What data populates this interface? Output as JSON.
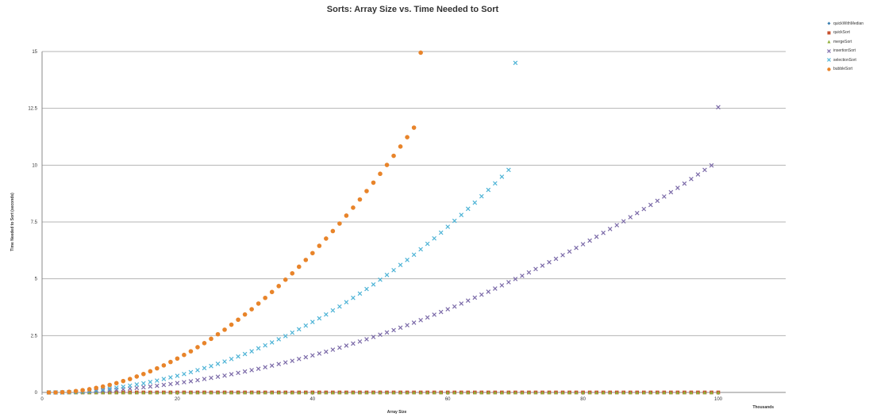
{
  "chart_data": {
    "type": "scatter",
    "title": "Sorts: Array Size vs. Time Needed to Sort",
    "xlabel": "Array Size",
    "ylabel": "Time Needed to Sort (seconds)",
    "x_unit_label": "Thousands",
    "xlim": [
      0,
      100
    ],
    "ylim": [
      0,
      15
    ],
    "x_ticks": [
      "0",
      "20",
      "40",
      "60",
      "80",
      "100"
    ],
    "y_ticks": [
      "0",
      "2.5",
      "5",
      "7.5",
      "10",
      "12.5",
      "15"
    ],
    "grid": "horizontal",
    "legend_position": "right",
    "series": [
      {
        "name": "quickWithMedian",
        "marker": "diamond",
        "color": "#3a7fb0",
        "x": [
          1,
          2,
          3,
          4,
          5,
          6,
          7,
          8,
          9,
          10,
          11,
          12,
          13,
          14,
          15,
          16,
          17,
          18,
          19,
          20,
          21,
          22,
          23,
          24,
          25,
          26,
          27,
          28,
          29,
          30,
          31,
          32,
          33,
          34,
          35,
          36,
          37,
          38,
          39,
          40,
          41,
          42,
          43,
          44,
          45,
          46,
          47,
          48,
          49,
          50,
          51,
          52,
          53,
          54,
          55,
          56,
          57,
          58,
          59,
          60,
          61,
          62,
          63,
          64,
          65,
          66,
          67,
          68,
          69,
          70,
          71,
          72,
          73,
          74,
          75,
          76,
          77,
          78,
          79,
          80,
          81,
          82,
          83,
          84,
          85,
          86,
          87,
          88,
          89,
          90,
          91,
          92,
          93,
          94,
          95,
          96,
          97,
          98,
          99,
          100
        ],
        "y": [
          0,
          0,
          0,
          0,
          0,
          0,
          0,
          0,
          0,
          0,
          0,
          0,
          0,
          0,
          0,
          0,
          0,
          0,
          0,
          0,
          0,
          0,
          0,
          0,
          0,
          0,
          0,
          0,
          0,
          0,
          0,
          0,
          0,
          0,
          0,
          0,
          0,
          0,
          0,
          0,
          0,
          0,
          0,
          0,
          0,
          0,
          0,
          0,
          0,
          0,
          0,
          0,
          0,
          0,
          0,
          0,
          0,
          0,
          0,
          0,
          0,
          0,
          0,
          0,
          0,
          0,
          0,
          0,
          0,
          0,
          0,
          0,
          0,
          0,
          0,
          0,
          0,
          0,
          0,
          0,
          0,
          0,
          0,
          0,
          0,
          0,
          0,
          0,
          0,
          0,
          0,
          0,
          0,
          0,
          0,
          0,
          0,
          0,
          0,
          0
        ]
      },
      {
        "name": "quickSort",
        "marker": "square",
        "color": "#c7502e",
        "x": [
          1,
          2,
          3,
          4,
          5,
          6,
          7,
          8,
          9,
          10,
          11,
          12,
          13,
          14,
          15,
          16,
          17,
          18,
          19,
          20,
          21,
          22,
          23,
          24,
          25,
          26,
          27,
          28,
          29,
          30,
          31,
          32,
          33,
          34,
          35,
          36,
          37,
          38,
          39,
          40,
          41,
          42,
          43,
          44,
          45,
          46,
          47,
          48,
          49,
          50,
          51,
          52,
          53,
          54,
          55,
          56,
          57,
          58,
          59,
          60,
          61,
          62,
          63,
          64,
          65,
          66,
          67,
          68,
          69,
          70,
          71,
          72,
          73,
          74,
          75,
          76,
          77,
          78,
          79,
          80,
          81,
          82,
          83,
          84,
          85,
          86,
          87,
          88,
          89,
          90,
          91,
          92,
          93,
          94,
          95,
          96,
          97,
          98,
          99,
          100
        ],
        "y": [
          0,
          0,
          0,
          0,
          0,
          0,
          0,
          0,
          0,
          0,
          0,
          0,
          0,
          0,
          0,
          0,
          0,
          0,
          0,
          0,
          0,
          0,
          0,
          0,
          0,
          0,
          0,
          0,
          0,
          0,
          0,
          0,
          0,
          0,
          0,
          0,
          0,
          0,
          0,
          0,
          0,
          0,
          0,
          0,
          0,
          0,
          0,
          0,
          0,
          0,
          0,
          0,
          0,
          0,
          0,
          0,
          0,
          0,
          0,
          0,
          0,
          0,
          0,
          0,
          0,
          0,
          0,
          0,
          0,
          0,
          0,
          0,
          0,
          0,
          0,
          0,
          0,
          0,
          0,
          0,
          0,
          0,
          0,
          0,
          0,
          0,
          0,
          0,
          0,
          0,
          0,
          0,
          0,
          0,
          0,
          0,
          0,
          0,
          0,
          0
        ]
      },
      {
        "name": "mergeSort",
        "marker": "triangle",
        "color": "#8fae3a",
        "x": [
          1,
          2,
          3,
          4,
          5,
          6,
          7,
          8,
          9,
          10,
          11,
          12,
          13,
          14,
          15,
          16,
          17,
          18,
          19,
          20,
          21,
          22,
          23,
          24,
          25,
          26,
          27,
          28,
          29,
          30,
          31,
          32,
          33,
          34,
          35,
          36,
          37,
          38,
          39,
          40,
          41,
          42,
          43,
          44,
          45,
          46,
          47,
          48,
          49,
          50,
          51,
          52,
          53,
          54,
          55,
          56,
          57,
          58,
          59,
          60,
          61,
          62,
          63,
          64,
          65,
          66,
          67,
          68,
          69,
          70,
          71,
          72,
          73,
          74,
          75,
          76,
          77,
          78,
          79,
          80,
          81,
          82,
          83,
          84,
          85,
          86,
          87,
          88,
          89,
          90,
          91,
          92,
          93,
          94,
          95,
          96,
          97,
          98,
          99,
          100
        ],
        "y": [
          0,
          0,
          0,
          0,
          0,
          0,
          0,
          0,
          0,
          0,
          0,
          0,
          0,
          0,
          0,
          0,
          0,
          0,
          0,
          0,
          0,
          0,
          0,
          0,
          0,
          0,
          0,
          0,
          0,
          0,
          0,
          0,
          0,
          0,
          0,
          0,
          0,
          0,
          0,
          0,
          0,
          0,
          0,
          0,
          0,
          0,
          0,
          0,
          0,
          0,
          0,
          0,
          0,
          0,
          0,
          0,
          0,
          0,
          0,
          0,
          0,
          0,
          0,
          0,
          0,
          0,
          0,
          0,
          0,
          0,
          0,
          0,
          0,
          0,
          0,
          0,
          0,
          0,
          0,
          0,
          0,
          0,
          0,
          0,
          0,
          0,
          0,
          0,
          0,
          0,
          0,
          0,
          0,
          0,
          0,
          0,
          0,
          0,
          0,
          0
        ]
      },
      {
        "name": "insertionSort",
        "marker": "x",
        "color": "#7b6aa8",
        "x": [
          1,
          2,
          3,
          4,
          5,
          6,
          7,
          8,
          9,
          10,
          11,
          12,
          13,
          14,
          15,
          16,
          17,
          18,
          19,
          20,
          21,
          22,
          23,
          24,
          25,
          26,
          27,
          28,
          29,
          30,
          31,
          32,
          33,
          34,
          35,
          36,
          37,
          38,
          39,
          40,
          41,
          42,
          43,
          44,
          45,
          46,
          47,
          48,
          49,
          50,
          51,
          52,
          53,
          54,
          55,
          56,
          57,
          58,
          59,
          60,
          61,
          62,
          63,
          64,
          65,
          66,
          67,
          68,
          69,
          70,
          71,
          72,
          73,
          74,
          75,
          76,
          77,
          78,
          79,
          80,
          81,
          82,
          83,
          84,
          85,
          86,
          87,
          88,
          89,
          90,
          91,
          92,
          93,
          94,
          95,
          96,
          97,
          98,
          99,
          100
        ],
        "y": [
          0,
          0,
          0,
          0.01,
          0.02,
          0.03,
          0.04,
          0.06,
          0.08,
          0.1,
          0.12,
          0.14,
          0.17,
          0.2,
          0.23,
          0.26,
          0.29,
          0.33,
          0.37,
          0.41,
          0.45,
          0.49,
          0.54,
          0.59,
          0.64,
          0.69,
          0.74,
          0.8,
          0.86,
          0.92,
          0.98,
          1.04,
          1.11,
          1.18,
          1.25,
          1.32,
          1.39,
          1.47,
          1.55,
          1.63,
          1.71,
          1.79,
          1.88,
          1.97,
          2.06,
          2.15,
          2.24,
          2.34,
          2.44,
          2.54,
          2.64,
          2.74,
          2.85,
          2.96,
          3.07,
          3.18,
          3.3,
          3.42,
          3.54,
          3.66,
          3.78,
          3.91,
          4.04,
          4.17,
          4.3,
          4.43,
          4.57,
          4.71,
          4.85,
          4.99,
          5.13,
          5.28,
          5.43,
          5.58,
          5.73,
          5.88,
          6.04,
          6.2,
          6.36,
          6.52,
          6.68,
          6.85,
          7.02,
          7.19,
          7.36,
          7.53,
          7.71,
          7.89,
          8.07,
          8.25,
          8.43,
          8.62,
          8.81,
          9.0,
          9.19,
          9.39,
          9.59,
          9.79,
          9.99,
          12.55
        ]
      },
      {
        "name": "selectionSort",
        "marker": "x",
        "color": "#4db3d6",
        "x": [
          1,
          2,
          3,
          4,
          5,
          6,
          7,
          8,
          9,
          10,
          11,
          12,
          13,
          14,
          15,
          16,
          17,
          18,
          19,
          20,
          21,
          22,
          23,
          24,
          25,
          26,
          27,
          28,
          29,
          30,
          31,
          32,
          33,
          34,
          35,
          36,
          37,
          38,
          39,
          40,
          41,
          42,
          43,
          44,
          45,
          46,
          47,
          48,
          49,
          50,
          51,
          52,
          53,
          54,
          55,
          56,
          57,
          58,
          59,
          60,
          61,
          62,
          63,
          64,
          65,
          66,
          67,
          68,
          69,
          70
        ],
        "y": [
          0,
          0,
          0,
          0.01,
          0.03,
          0.05,
          0.07,
          0.1,
          0.13,
          0.17,
          0.21,
          0.25,
          0.3,
          0.35,
          0.4,
          0.46,
          0.52,
          0.59,
          0.66,
          0.73,
          0.81,
          0.89,
          0.98,
          1.07,
          1.16,
          1.26,
          1.36,
          1.47,
          1.58,
          1.69,
          1.81,
          1.94,
          2.07,
          2.2,
          2.34,
          2.48,
          2.63,
          2.78,
          2.94,
          3.1,
          3.26,
          3.43,
          3.61,
          3.78,
          3.97,
          4.16,
          4.35,
          4.55,
          4.75,
          4.96,
          5.17,
          5.38,
          5.61,
          5.83,
          6.06,
          6.3,
          6.54,
          6.78,
          7.03,
          7.29,
          7.55,
          7.81,
          8.08,
          8.35,
          8.63,
          8.91,
          9.2,
          9.49,
          9.79,
          14.5
        ]
      },
      {
        "name": "bubbleSort",
        "marker": "circle",
        "color": "#e8842a",
        "x": [
          1,
          2,
          3,
          4,
          5,
          6,
          7,
          8,
          9,
          10,
          11,
          12,
          13,
          14,
          15,
          16,
          17,
          18,
          19,
          20,
          21,
          22,
          23,
          24,
          25,
          26,
          27,
          28,
          29,
          30,
          31,
          32,
          33,
          34,
          35,
          36,
          37,
          38,
          39,
          40,
          41,
          42,
          43,
          44,
          45,
          46,
          47,
          48,
          49,
          50,
          51,
          52,
          53,
          54,
          55,
          56
        ],
        "y": [
          0,
          0,
          0.01,
          0.03,
          0.06,
          0.1,
          0.14,
          0.2,
          0.26,
          0.33,
          0.41,
          0.5,
          0.59,
          0.7,
          0.81,
          0.93,
          1.06,
          1.19,
          1.34,
          1.49,
          1.65,
          1.81,
          1.99,
          2.17,
          2.36,
          2.56,
          2.76,
          2.98,
          3.2,
          3.43,
          3.66,
          3.91,
          4.16,
          4.42,
          4.68,
          4.96,
          5.24,
          5.53,
          5.83,
          6.13,
          6.45,
          6.77,
          7.1,
          7.43,
          7.78,
          8.13,
          8.49,
          8.86,
          9.23,
          9.62,
          10.01,
          10.41,
          10.82,
          11.23,
          11.65,
          14.95
        ]
      }
    ]
  }
}
